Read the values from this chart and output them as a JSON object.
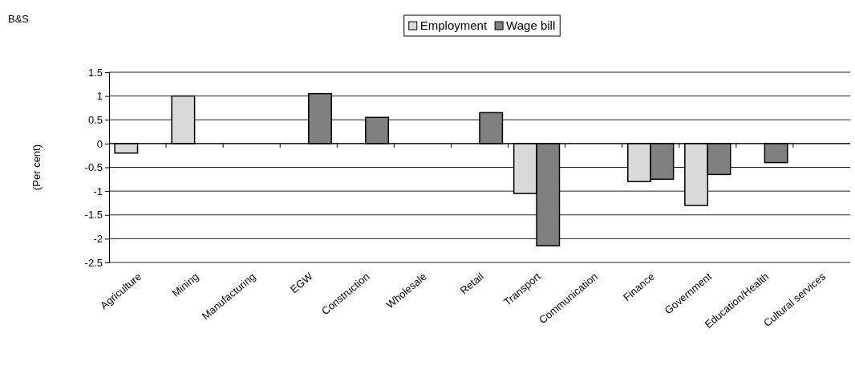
{
  "chart_data": {
    "type": "bar",
    "annotations": [
      "B&S"
    ],
    "ylabel": "(Per cent)",
    "categories": [
      "Agriculture",
      "Mining",
      "Manufacturing",
      "EGW",
      "Construction",
      "Wholesale",
      "Retail",
      "Transport",
      "Communication",
      "Finance",
      "Government",
      "Education/Health",
      "Cultural services"
    ],
    "series": [
      {
        "name": "Employment",
        "color": "#d9d9d9",
        "values": [
          -0.2,
          1.0,
          null,
          null,
          null,
          null,
          null,
          -1.05,
          null,
          -0.8,
          -1.3,
          null,
          null
        ]
      },
      {
        "name": "Wage bill",
        "color": "#808080",
        "values": [
          null,
          null,
          null,
          1.05,
          0.55,
          null,
          0.65,
          -2.15,
          null,
          -0.75,
          -0.65,
          -0.4,
          null
        ]
      }
    ],
    "ylim": [
      -2.5,
      1.5
    ],
    "yticks": [
      -2.5,
      -2,
      -1.5,
      -1,
      -0.5,
      0,
      0.5,
      1,
      1.5
    ],
    "grid": "y",
    "legend": "top"
  }
}
